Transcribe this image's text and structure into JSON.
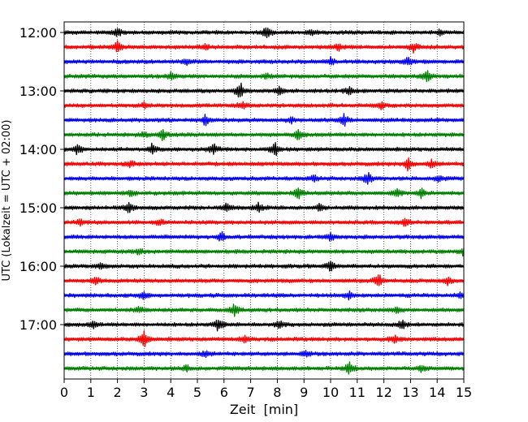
{
  "chart_data": {
    "type": "line",
    "title": "",
    "xlabel": "Zeit  [min]",
    "ylabel": "UTC (Lokalzeit = UTC + 02:00)",
    "xlim": [
      0,
      15
    ],
    "x_ticks": [
      "0",
      "1",
      "2",
      "3",
      "4",
      "5",
      "6",
      "7",
      "8",
      "9",
      "10",
      "11",
      "12",
      "13",
      "14",
      "15"
    ],
    "y_ticks": [
      "12:00",
      "13:00",
      "14:00",
      "15:00",
      "16:00",
      "17:00"
    ],
    "grid": "vertical dotted",
    "trace_interval_min": 15,
    "trace_start": "12:00",
    "color_cycle": [
      "#000000",
      "#ff0000",
      "#0000ff",
      "#008000"
    ],
    "series": [
      {
        "start": "12:00",
        "color": "#000000",
        "spikes": [
          [
            2.0,
            0.4
          ],
          [
            7.6,
            0.6
          ],
          [
            9.3,
            0.3
          ],
          [
            14.1,
            0.3
          ]
        ]
      },
      {
        "start": "12:15",
        "color": "#ff0000",
        "spikes": [
          [
            2.0,
            0.6
          ],
          [
            5.3,
            0.3
          ],
          [
            10.3,
            0.35
          ],
          [
            13.1,
            0.5
          ]
        ]
      },
      {
        "start": "12:30",
        "color": "#0000ff",
        "spikes": [
          [
            4.6,
            0.3
          ],
          [
            10.0,
            0.4
          ],
          [
            12.9,
            0.4
          ]
        ]
      },
      {
        "start": "12:45",
        "color": "#008000",
        "spikes": [
          [
            4.0,
            0.3
          ],
          [
            7.6,
            0.3
          ],
          [
            13.6,
            0.6
          ]
        ]
      },
      {
        "start": "13:00",
        "color": "#000000",
        "spikes": [
          [
            6.6,
            0.9
          ],
          [
            8.1,
            0.5
          ],
          [
            10.7,
            0.4
          ]
        ]
      },
      {
        "start": "13:15",
        "color": "#ff0000",
        "spikes": [
          [
            3.0,
            0.3
          ],
          [
            6.7,
            0.4
          ],
          [
            11.9,
            0.3
          ]
        ]
      },
      {
        "start": "13:30",
        "color": "#0000ff",
        "spikes": [
          [
            5.3,
            0.5
          ],
          [
            8.5,
            0.3
          ],
          [
            10.5,
            0.6
          ]
        ]
      },
      {
        "start": "13:45",
        "color": "#008000",
        "spikes": [
          [
            3.0,
            0.3
          ],
          [
            3.7,
            0.6
          ],
          [
            8.8,
            0.5
          ]
        ]
      },
      {
        "start": "14:00",
        "color": "#000000",
        "spikes": [
          [
            0.5,
            0.6
          ],
          [
            3.3,
            0.5
          ],
          [
            5.6,
            0.6
          ],
          [
            7.9,
            0.8
          ]
        ]
      },
      {
        "start": "14:15",
        "color": "#ff0000",
        "spikes": [
          [
            2.5,
            0.3
          ],
          [
            12.9,
            0.7
          ],
          [
            13.8,
            0.4
          ]
        ]
      },
      {
        "start": "14:30",
        "color": "#0000ff",
        "spikes": [
          [
            9.4,
            0.3
          ],
          [
            11.4,
            0.7
          ],
          [
            14.1,
            0.4
          ]
        ]
      },
      {
        "start": "14:45",
        "color": "#008000",
        "spikes": [
          [
            2.5,
            0.3
          ],
          [
            8.8,
            0.6
          ],
          [
            12.5,
            0.5
          ],
          [
            13.4,
            0.5
          ]
        ]
      },
      {
        "start": "15:00",
        "color": "#000000",
        "spikes": [
          [
            2.4,
            0.6
          ],
          [
            6.1,
            0.5
          ],
          [
            7.3,
            0.5
          ],
          [
            9.6,
            0.4
          ]
        ]
      },
      {
        "start": "15:15",
        "color": "#ff0000",
        "spikes": [
          [
            0.6,
            0.3
          ],
          [
            3.6,
            0.3
          ],
          [
            12.8,
            0.5
          ]
        ]
      },
      {
        "start": "15:30",
        "color": "#0000ff",
        "spikes": [
          [
            5.9,
            0.5
          ],
          [
            10.0,
            0.4
          ]
        ]
      },
      {
        "start": "15:45",
        "color": "#008000",
        "spikes": [
          [
            2.8,
            0.3
          ],
          [
            15.0,
            0.5
          ]
        ]
      },
      {
        "start": "16:00",
        "color": "#000000",
        "spikes": [
          [
            1.4,
            0.3
          ],
          [
            10.0,
            0.5
          ]
        ]
      },
      {
        "start": "16:15",
        "color": "#ff0000",
        "spikes": [
          [
            1.2,
            0.3
          ],
          [
            11.8,
            0.7
          ],
          [
            14.4,
            0.5
          ]
        ]
      },
      {
        "start": "16:30",
        "color": "#0000ff",
        "spikes": [
          [
            3.0,
            0.4
          ],
          [
            10.7,
            0.4
          ],
          [
            14.9,
            0.3
          ]
        ]
      },
      {
        "start": "16:45",
        "color": "#008000",
        "spikes": [
          [
            2.8,
            0.3
          ],
          [
            6.4,
            0.6
          ],
          [
            12.5,
            0.3
          ]
        ]
      },
      {
        "start": "17:00",
        "color": "#000000",
        "spikes": [
          [
            1.1,
            0.3
          ],
          [
            5.8,
            0.7
          ],
          [
            8.1,
            0.5
          ],
          [
            12.7,
            0.5
          ]
        ]
      },
      {
        "start": "17:15",
        "color": "#ff0000",
        "spikes": [
          [
            3.0,
            0.9
          ],
          [
            6.8,
            0.3
          ],
          [
            12.4,
            0.4
          ]
        ]
      },
      {
        "start": "17:30",
        "color": "#0000ff",
        "spikes": [
          [
            5.3,
            0.3
          ],
          [
            9.1,
            0.3
          ]
        ]
      },
      {
        "start": "17:45",
        "color": "#008000",
        "spikes": [
          [
            4.6,
            0.3
          ],
          [
            10.7,
            0.6
          ],
          [
            13.4,
            0.3
          ]
        ]
      }
    ]
  }
}
